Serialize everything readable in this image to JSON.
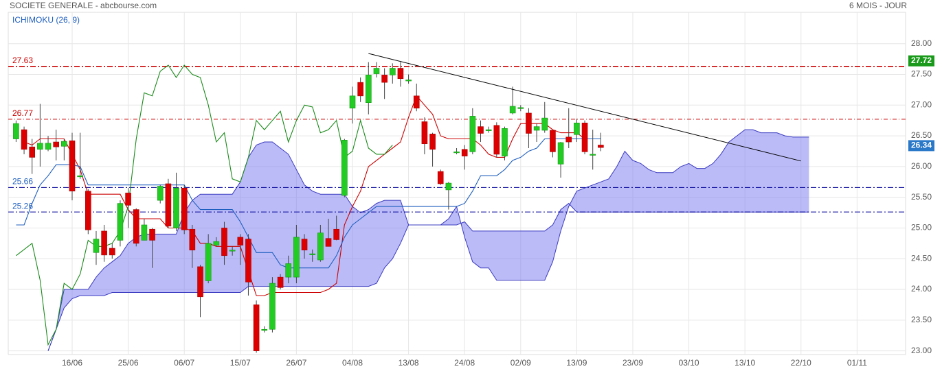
{
  "chart_data": {
    "type": "candlestick",
    "title": "SOCIETE GENERALE - abcbourse.com",
    "period": "6 MOIS - JOUR",
    "indicator": "ICHIMOKU (26, 9)",
    "categories": [
      null,
      null,
      null,
      null,
      null,
      null,
      null,
      "16/06",
      null,
      null,
      null,
      null,
      null,
      null,
      "25/06",
      null,
      null,
      null,
      null,
      null,
      null,
      "06/07",
      null,
      null,
      null,
      null,
      null,
      null,
      "15/07",
      null,
      null,
      null,
      null,
      null,
      null,
      "26/07",
      null,
      null,
      null,
      null,
      null,
      null,
      "04/08",
      null,
      null,
      null,
      null,
      null,
      null,
      "13/08",
      null,
      null,
      null,
      null,
      null,
      null,
      "24/08",
      null,
      null,
      null,
      null,
      null,
      null,
      "02/09",
      null,
      null,
      null,
      null,
      null,
      null,
      "13/09",
      null,
      null,
      null,
      null,
      null,
      null,
      "23/09",
      null,
      null,
      null,
      null,
      null,
      null,
      "03/10",
      null,
      null,
      null,
      null,
      null,
      null,
      "13/10",
      null,
      null,
      null,
      null,
      null,
      null,
      "22/10",
      null,
      null,
      null,
      null,
      null,
      null,
      "01/11"
    ],
    "open": [
      26.45,
      26.6,
      26.32,
      26.28,
      26.28,
      26.4,
      26.33,
      26.42,
      25.85,
      25.6,
      24.6,
      24.95,
      24.67,
      24.8,
      25.57,
      25.3,
      24.8,
      24.98,
      25.45,
      25.72,
      25.0,
      25.65,
      24.98,
      24.37,
      24.14,
      24.72,
      25.0,
      24.64,
      24.85,
      24.82,
      23.75,
      23.35,
      23.35,
      24.2,
      24.2,
      24.2,
      24.82,
      24.58,
      24.48,
      24.83,
      24.98,
      25.53,
      26.95,
      27.37,
      27.04,
      27.51,
      27.49,
      27.49,
      27.6,
      27.41,
      27.15,
      26.73,
      26.53,
      25.92,
      25.62,
      26.24,
      26.28,
      26.24,
      26.65,
      26.6,
      26.67,
      26.17,
      26.87,
      26.96,
      26.87,
      26.59,
      26.59,
      26.59,
      26.04,
      26.48,
      26.52,
      26.71,
      26.2,
      26.35,
      null,
      null,
      null,
      null,
      null,
      null,
      null,
      null,
      null,
      null,
      null,
      null,
      null,
      null,
      null,
      null,
      null,
      null,
      null,
      null,
      null,
      null,
      null,
      null,
      null,
      null,
      null,
      null,
      null,
      null,
      null,
      null
    ],
    "high": [
      26.75,
      26.65,
      26.45,
      27.02,
      26.5,
      26.6,
      26.45,
      26.55,
      26.55,
      25.63,
      24.95,
      25.05,
      24.75,
      25.45,
      25.65,
      25.32,
      25.15,
      25.0,
      25.7,
      25.8,
      25.9,
      25.7,
      25.05,
      24.4,
      24.9,
      24.85,
      25.1,
      24.7,
      24.9,
      24.9,
      23.82,
      23.4,
      24.2,
      24.25,
      24.55,
      25.05,
      24.9,
      24.65,
      25.05,
      25.15,
      25.2,
      26.45,
      27.3,
      27.45,
      27.7,
      27.7,
      27.6,
      27.68,
      27.7,
      27.5,
      27.35,
      26.8,
      26.55,
      25.95,
      25.75,
      26.3,
      26.35,
      26.95,
      26.75,
      26.65,
      26.72,
      26.65,
      27.3,
      27.0,
      26.95,
      26.7,
      27.05,
      26.6,
      26.4,
      26.95,
      26.78,
      26.75,
      26.6,
      26.55,
      null,
      null,
      null,
      null,
      null,
      null,
      null,
      null,
      null,
      null,
      null,
      null,
      null,
      null,
      null,
      null,
      null,
      null,
      null,
      null,
      null,
      null,
      null,
      null,
      null,
      null,
      null,
      null,
      null,
      null,
      null,
      null
    ],
    "low": [
      26.4,
      26.2,
      25.88,
      26.0,
      26.25,
      26.1,
      26.1,
      25.45,
      25.8,
      24.9,
      24.4,
      24.45,
      24.5,
      24.7,
      25.0,
      24.7,
      24.8,
      24.35,
      25.4,
      25.0,
      24.95,
      24.9,
      24.35,
      23.55,
      24.1,
      24.7,
      24.4,
      24.55,
      24.4,
      23.9,
      22.97,
      23.3,
      23.3,
      24.0,
      24.1,
      24.1,
      24.5,
      24.45,
      24.45,
      24.7,
      24.8,
      25.5,
      26.7,
      27.05,
      26.85,
      27.45,
      27.1,
      27.35,
      27.3,
      27.35,
      26.9,
      26.2,
      26.0,
      25.7,
      25.3,
      26.2,
      25.95,
      26.2,
      26.4,
      26.55,
      26.15,
      26.1,
      26.85,
      26.9,
      26.3,
      26.4,
      26.55,
      26.15,
      25.82,
      26.3,
      26.4,
      26.2,
      25.95,
      26.25,
      null,
      null,
      null,
      null,
      null,
      null,
      null,
      null,
      null,
      null,
      null,
      null,
      null,
      null,
      null,
      null,
      null,
      null,
      null,
      null,
      null,
      null,
      null,
      null,
      null,
      null,
      null,
      null,
      null,
      null,
      null,
      null
    ],
    "close": [
      26.7,
      26.28,
      26.15,
      26.38,
      26.38,
      26.32,
      26.41,
      25.6,
      25.85,
      24.97,
      24.82,
      24.56,
      24.56,
      25.4,
      25.37,
      24.75,
      25.05,
      24.8,
      25.68,
      25.03,
      25.65,
      24.97,
      24.64,
      23.88,
      24.75,
      24.78,
      24.55,
      24.64,
      24.72,
      24.12,
      23.0,
      23.35,
      24.1,
      24.03,
      24.42,
      24.85,
      24.64,
      24.58,
      24.92,
      24.7,
      24.81,
      26.43,
      27.15,
      27.15,
      27.49,
      27.6,
      27.37,
      27.6,
      27.43,
      27.41,
      26.95,
      26.37,
      26.28,
      25.72,
      25.73,
      26.24,
      26.17,
      26.82,
      26.54,
      26.6,
      26.2,
      26.62,
      26.98,
      26.96,
      26.54,
      26.65,
      26.79,
      26.24,
      26.39,
      26.4,
      26.71,
      26.24,
      26.2,
      26.31,
      null,
      null,
      null,
      null,
      null,
      null,
      null,
      null,
      null,
      null,
      null,
      null,
      null,
      null,
      null,
      null,
      null,
      null,
      null,
      null,
      null,
      null,
      null,
      null,
      null,
      null,
      null,
      null,
      null,
      null,
      null,
      null
    ],
    "up_color": "#22cc22",
    "down_color": "#dd0000",
    "cloud": {
      "color": "#7878f0",
      "span_a": {
        "color": "#3a3ac0",
        "values": [
          null,
          null,
          null,
          null,
          23.0,
          23.35,
          24.0,
          24.0,
          24.0,
          24.0,
          24.2,
          24.35,
          24.45,
          24.55,
          24.75,
          24.85,
          24.9,
          24.9,
          24.9,
          24.9,
          24.9,
          25.25,
          25.45,
          25.55,
          25.55,
          25.55,
          25.55,
          25.55,
          25.75,
          26.15,
          26.35,
          26.4,
          26.4,
          26.3,
          26.2,
          25.95,
          25.7,
          25.6,
          25.55,
          25.55,
          25.55,
          25.55,
          25.35,
          25.25,
          25.3,
          25.4,
          25.45,
          25.45,
          25.45,
          25.05,
          25.05,
          25.05,
          25.05,
          25.05,
          25.15,
          25.35,
          24.85,
          24.45,
          24.35,
          24.35,
          24.15,
          24.15,
          24.15,
          24.15,
          24.15,
          24.15,
          24.15,
          24.45,
          24.95,
          25.35,
          25.6,
          25.65,
          25.7,
          25.75,
          25.8,
          26.0,
          26.25,
          26.1,
          26.05,
          25.95,
          25.9,
          25.9,
          25.9,
          26.0,
          26.05,
          25.97,
          25.97,
          26.05,
          26.2,
          26.4,
          26.5,
          26.6,
          26.6,
          26.55,
          26.55,
          26.55,
          26.5,
          26.48,
          26.48,
          26.48,
          null,
          null,
          null,
          null,
          null,
          null
        ]
      },
      "span_b": {
        "color": "#3a3ac0",
        "values": [
          null,
          null,
          null,
          null,
          23.0,
          23.35,
          23.7,
          23.85,
          23.9,
          23.9,
          23.9,
          23.9,
          23.95,
          23.95,
          23.95,
          23.95,
          23.95,
          23.95,
          23.95,
          23.95,
          23.95,
          23.95,
          23.95,
          23.95,
          23.95,
          23.95,
          23.95,
          23.95,
          23.95,
          24.05,
          24.05,
          24.05,
          24.05,
          24.05,
          24.05,
          24.05,
          24.05,
          24.05,
          24.05,
          24.05,
          24.05,
          24.05,
          24.05,
          24.05,
          24.05,
          24.1,
          24.35,
          24.5,
          24.75,
          25.05,
          25.05,
          25.05,
          25.05,
          25.05,
          25.05,
          25.05,
          25.1,
          24.95,
          24.95,
          24.95,
          24.95,
          24.95,
          24.95,
          24.95,
          24.95,
          24.95,
          24.95,
          25.05,
          25.3,
          25.4,
          25.26,
          25.26,
          25.26,
          25.26,
          25.26,
          25.26,
          25.26,
          25.26,
          25.26,
          25.26,
          25.26,
          25.26,
          25.26,
          25.26,
          25.26,
          25.26,
          25.26,
          25.26,
          25.26,
          25.26,
          25.26,
          25.26,
          25.26,
          25.26,
          25.26,
          25.26,
          25.26,
          25.26,
          25.26,
          25.26,
          null,
          null,
          null,
          null,
          null,
          null
        ]
      }
    },
    "lines": [
      {
        "color": "#cc0000",
        "values": [
          null,
          26.4,
          26.35,
          26.45,
          26.45,
          26.45,
          26.45,
          26.2,
          25.95,
          25.55,
          25.55,
          25.55,
          25.55,
          25.55,
          25.3,
          25.15,
          25.15,
          25.15,
          25.15,
          25.0,
          25.0,
          25.0,
          24.95,
          24.75,
          24.75,
          24.7,
          24.7,
          24.7,
          24.7,
          24.3,
          23.9,
          23.9,
          23.95,
          23.95,
          23.95,
          23.95,
          23.95,
          23.95,
          23.95,
          24.0,
          24.1,
          25.05,
          25.35,
          25.6,
          26.0,
          26.1,
          26.2,
          26.3,
          26.4,
          26.8,
          27.15,
          27.0,
          26.85,
          26.5,
          26.45,
          26.45,
          26.45,
          26.45,
          26.35,
          26.2,
          26.15,
          26.15,
          26.45,
          26.7,
          26.7,
          26.7,
          26.7,
          26.6,
          26.55,
          26.55,
          26.55,
          26.45,
          26.45,
          26.45,
          null,
          null,
          null,
          null,
          null,
          null,
          null,
          null,
          null,
          null,
          null,
          null,
          null,
          null,
          null,
          null,
          null,
          null,
          null,
          null,
          null,
          null,
          null,
          null,
          null,
          null,
          null,
          null,
          null,
          null,
          null,
          null
        ]
      },
      {
        "color": "#1f5fbf",
        "values": [
          25.05,
          25.05,
          25.4,
          25.7,
          25.85,
          26.03,
          26.03,
          26.03,
          26.0,
          25.7,
          25.7,
          25.7,
          25.7,
          25.7,
          25.7,
          25.7,
          25.7,
          25.7,
          25.7,
          25.7,
          25.7,
          25.7,
          25.45,
          25.3,
          25.3,
          25.3,
          25.3,
          25.3,
          25.1,
          24.85,
          24.6,
          24.6,
          24.6,
          24.4,
          24.35,
          24.35,
          24.35,
          24.35,
          24.35,
          24.35,
          24.55,
          24.85,
          25.05,
          25.15,
          25.25,
          25.35,
          25.35,
          25.35,
          25.35,
          25.35,
          25.35,
          25.35,
          25.35,
          25.35,
          25.35,
          25.35,
          25.4,
          25.6,
          25.85,
          25.85,
          25.85,
          25.95,
          26.1,
          26.15,
          26.25,
          26.3,
          26.45,
          26.45,
          26.45,
          26.45,
          26.45,
          26.45,
          26.45,
          26.45,
          null,
          null,
          null,
          null,
          null,
          null,
          null,
          null,
          null,
          null,
          null,
          null,
          null,
          null,
          null,
          null,
          null,
          null,
          null,
          null,
          null,
          null,
          null,
          null,
          null,
          null,
          null,
          null,
          null,
          null,
          null,
          null
        ]
      },
      {
        "color": "#1a8a1a",
        "values": [
          24.55,
          24.65,
          24.75,
          24.15,
          23.1,
          23.35,
          24.1,
          24.0,
          24.25,
          24.8,
          24.7,
          24.7,
          24.75,
          24.95,
          25.35,
          26.45,
          27.2,
          27.15,
          27.55,
          27.65,
          27.45,
          27.65,
          27.5,
          27.45,
          27.0,
          26.4,
          26.55,
          25.8,
          25.75,
          26.15,
          26.75,
          26.6,
          26.75,
          26.9,
          26.4,
          26.75,
          27.0,
          26.97,
          26.55,
          26.6,
          26.75,
          26.15,
          26.25,
          26.75,
          26.3,
          26.2,
          26.2,
          26.35,
          null,
          null,
          null,
          null,
          null,
          null,
          null,
          null,
          null,
          null,
          null,
          null,
          null,
          null,
          null,
          null,
          null,
          null,
          null,
          null,
          null,
          null,
          null,
          null,
          null,
          null,
          null,
          null,
          null,
          null,
          null,
          null,
          null,
          null,
          null,
          null,
          null,
          null,
          null,
          null,
          null,
          null,
          null,
          null,
          null,
          null,
          null,
          null,
          null,
          null,
          null,
          null,
          null,
          null,
          null,
          null,
          null,
          null
        ]
      }
    ],
    "levels": [
      {
        "value": 27.63,
        "color": "#cc0000",
        "label_color": "#cc0000"
      },
      {
        "value": 26.77,
        "color": "#cc0000",
        "label_color": "#cc0000"
      },
      {
        "value": 25.66,
        "color": "#000099",
        "label_color": "#1f5fbf"
      },
      {
        "value": 25.26,
        "color": "#000099",
        "label_color": "#1f5fbf"
      }
    ],
    "tags": [
      {
        "value": 27.72,
        "color": "#1a9a1a"
      },
      {
        "value": 26.34,
        "color": "#2a78c8"
      }
    ],
    "trendline": {
      "x": [
        44,
        98
      ],
      "values": [
        27.84,
        26.09
      ],
      "color": "#000000"
    },
    "ylim": [
      22.94,
      28.51
    ],
    "yticks": [
      {
        "value": 23.0,
        "label": "23.00"
      },
      {
        "value": 23.5,
        "label": "23.50"
      },
      {
        "value": 24.0,
        "label": "24.00"
      },
      {
        "value": 24.5,
        "label": "24.50"
      },
      {
        "value": 25.0,
        "label": "25.00"
      },
      {
        "value": 25.5,
        "label": "25.50"
      },
      {
        "value": 26.0,
        "label": "26.00"
      },
      {
        "value": 26.5,
        "label": "26.50"
      },
      {
        "value": 27.0,
        "label": "27.00"
      },
      {
        "value": 27.5,
        "label": "27.50"
      },
      {
        "value": 28.0,
        "label": "28.00"
      }
    ],
    "grid": true
  }
}
